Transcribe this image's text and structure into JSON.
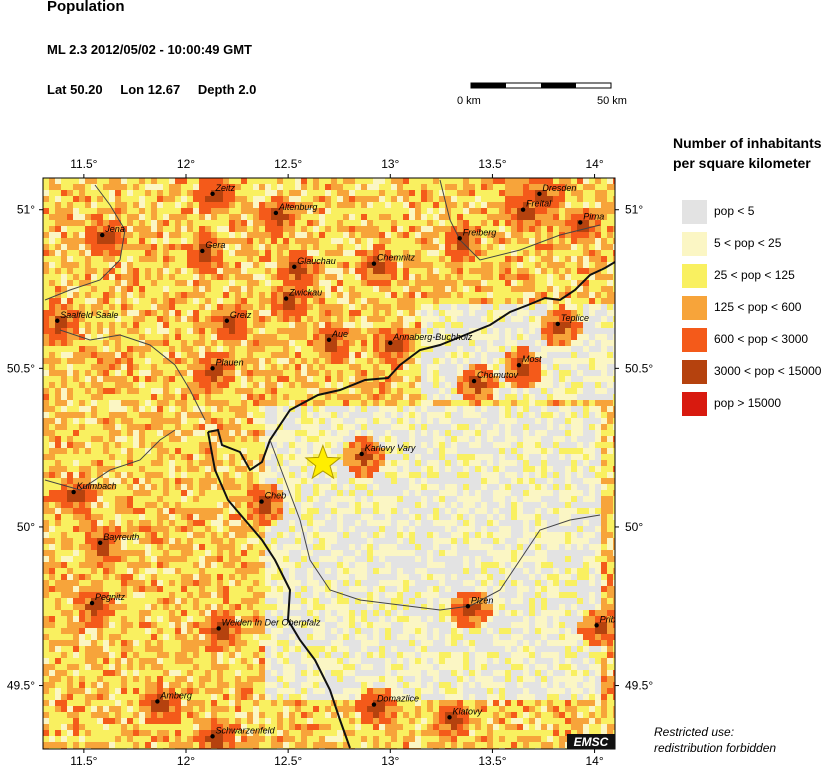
{
  "header": {
    "title": "Population",
    "event": "ML 2.3  2012/05/02 - 10:00:49 GMT",
    "lat": "Lat 50.20",
    "lon": "Lon  12.67",
    "depth": "Depth  2.0"
  },
  "scale_bar": {
    "left_label": "0 km",
    "right_label": "50 km"
  },
  "legend": {
    "title_line1": "Number of inhabitants",
    "title_line2": "per square kilometer",
    "items": [
      {
        "label": "pop < 5",
        "color": "#e3e3e3"
      },
      {
        "label": "5 < pop < 25",
        "color": "#fbf6c4"
      },
      {
        "label": "25 < pop < 125",
        "color": "#f9f060"
      },
      {
        "label": "125 < pop < 600",
        "color": "#f7a43a"
      },
      {
        "label": "600 < pop < 3000",
        "color": "#f45a1a"
      },
      {
        "label": "3000 < pop < 15000",
        "color": "#b5420e"
      },
      {
        "label": "pop > 15000",
        "color": "#d81a0f"
      }
    ]
  },
  "map": {
    "lon_range": [
      11.3,
      14.1
    ],
    "lat_range": [
      49.3,
      51.1
    ],
    "lon_ticks": [
      {
        "v": 11.5,
        "label": "11.5°"
      },
      {
        "v": 12,
        "label": "12°"
      },
      {
        "v": 12.5,
        "label": "12.5°"
      },
      {
        "v": 13,
        "label": "13°"
      },
      {
        "v": 13.5,
        "label": "13.5°"
      },
      {
        "v": 14,
        "label": "14°"
      }
    ],
    "lat_ticks": [
      {
        "v": 51,
        "label": "51°"
      },
      {
        "v": 50.5,
        "label": "50.5°"
      },
      {
        "v": 50,
        "label": "50°"
      },
      {
        "v": 49.5,
        "label": "49.5°"
      }
    ],
    "epicenter": {
      "lon": 12.67,
      "lat": 50.2,
      "color": "#ffee00"
    },
    "cities": [
      {
        "name": "Zeitz",
        "lon": 12.13,
        "lat": 51.05
      },
      {
        "name": "Altenburg",
        "lon": 12.44,
        "lat": 50.99
      },
      {
        "name": "Dresden",
        "lon": 13.73,
        "lat": 51.05
      },
      {
        "name": "Freital",
        "lon": 13.65,
        "lat": 51.0
      },
      {
        "name": "Pirna",
        "lon": 13.93,
        "lat": 50.96
      },
      {
        "name": "Jena",
        "lon": 11.59,
        "lat": 50.92
      },
      {
        "name": "Gera",
        "lon": 12.08,
        "lat": 50.87
      },
      {
        "name": "Freiberg",
        "lon": 13.34,
        "lat": 50.91
      },
      {
        "name": "Glauchau",
        "lon": 12.53,
        "lat": 50.82
      },
      {
        "name": "Chemnitz",
        "lon": 12.92,
        "lat": 50.83
      },
      {
        "name": "Zwickau",
        "lon": 12.49,
        "lat": 50.72
      },
      {
        "name": "Saalfeld Saale",
        "lon": 11.37,
        "lat": 50.65
      },
      {
        "name": "Greiz",
        "lon": 12.2,
        "lat": 50.65
      },
      {
        "name": "Teplice",
        "lon": 13.82,
        "lat": 50.64
      },
      {
        "name": "Aue",
        "lon": 12.7,
        "lat": 50.59
      },
      {
        "name": "Annaberg-Buchholz",
        "lon": 13.0,
        "lat": 50.58
      },
      {
        "name": "Most",
        "lon": 13.63,
        "lat": 50.51
      },
      {
        "name": "Plauen",
        "lon": 12.13,
        "lat": 50.5
      },
      {
        "name": "Chomutov",
        "lon": 13.41,
        "lat": 50.46
      },
      {
        "name": "Karlovy Vary",
        "lon": 12.86,
        "lat": 50.23
      },
      {
        "name": "Kulmbach",
        "lon": 11.45,
        "lat": 50.11
      },
      {
        "name": "Cheb",
        "lon": 12.37,
        "lat": 50.08
      },
      {
        "name": "Bayreuth",
        "lon": 11.58,
        "lat": 49.95
      },
      {
        "name": "Pegnitz",
        "lon": 11.54,
        "lat": 49.76
      },
      {
        "name": "Plzen",
        "lon": 13.38,
        "lat": 49.75
      },
      {
        "name": "Prib",
        "lon": 14.01,
        "lat": 49.69
      },
      {
        "name": "Weiden In Der Oberpfalz",
        "lon": 12.16,
        "lat": 49.68
      },
      {
        "name": "Amberg",
        "lon": 11.86,
        "lat": 49.45
      },
      {
        "name": "Domazlice",
        "lon": 12.92,
        "lat": 49.44
      },
      {
        "name": "Klatovy",
        "lon": 13.29,
        "lat": 49.4
      },
      {
        "name": "Schwarzenfeld",
        "lon": 12.13,
        "lat": 49.34
      }
    ]
  },
  "watermark": "EMSC",
  "footer": {
    "line1": "Restricted use:",
    "line2": "redistribution forbidden"
  }
}
